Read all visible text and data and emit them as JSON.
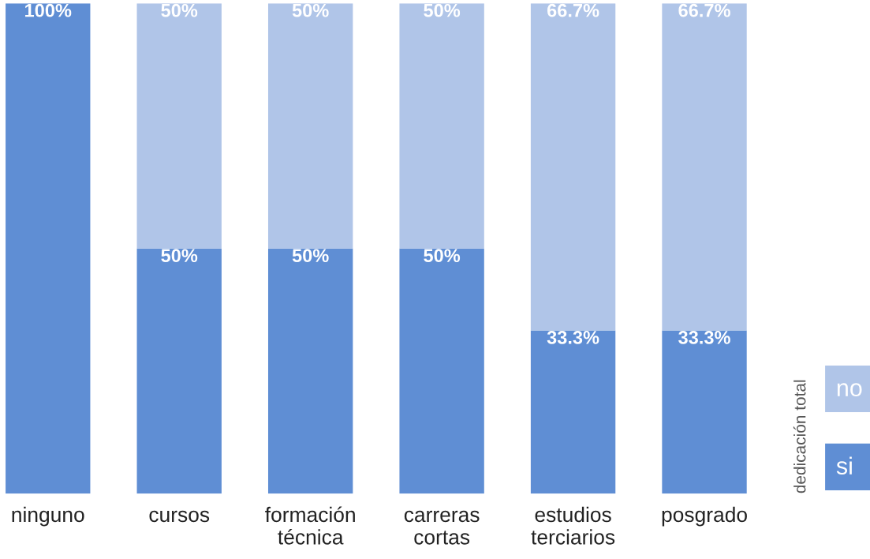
{
  "chart_data": {
    "type": "bar",
    "stacked": true,
    "legend": "right",
    "legend_title": "dedicación total",
    "categories": [
      "ninguno",
      "cursos",
      "formación\ntécnica",
      "carreras\ncortas",
      "estudios\nterciarios",
      "posgrado"
    ],
    "series": [
      {
        "name": "si",
        "color": "#5f8ed4",
        "values": [
          100,
          50,
          50,
          50,
          33.3,
          33.3
        ],
        "value_labels": [
          "100%",
          "50%",
          "50%",
          "50%",
          "33.3%",
          "33.3%"
        ]
      },
      {
        "name": "no",
        "color": "#b0c5e8",
        "values": [
          null,
          50,
          50,
          50,
          66.7,
          66.7
        ],
        "value_labels": [
          null,
          "50%",
          "50%",
          "50%",
          "66.7%",
          "66.7%"
        ]
      }
    ]
  }
}
